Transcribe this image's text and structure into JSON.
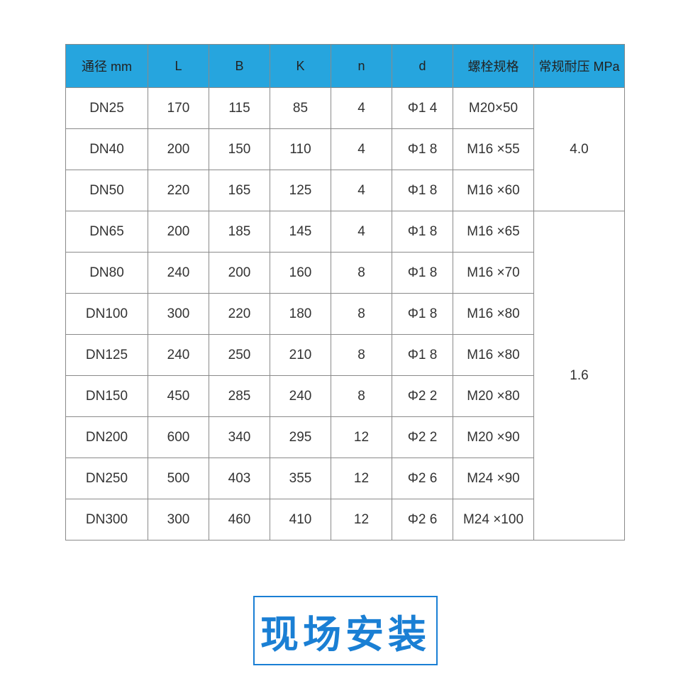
{
  "table": {
    "headers": [
      "通径 mm",
      "L",
      "B",
      "K",
      "n",
      "d",
      "螺栓规格",
      "常规耐压 MPa"
    ],
    "rows": [
      [
        "DN25",
        "170",
        "115",
        "85",
        "4",
        "Φ1 4",
        "M20×50"
      ],
      [
        "DN40",
        "200",
        "150",
        "110",
        "4",
        "Φ1 8",
        "M16 ×55"
      ],
      [
        "DN50",
        "220",
        "165",
        "125",
        "4",
        "Φ1 8",
        "M16 ×60"
      ],
      [
        "DN65",
        "200",
        "185",
        "145",
        "4",
        "Φ1 8",
        "M16 ×65"
      ],
      [
        "DN80",
        "240",
        "200",
        "160",
        "8",
        "Φ1 8",
        "M16 ×70"
      ],
      [
        "DN100",
        "300",
        "220",
        "180",
        "8",
        "Φ1 8",
        "M16 ×80"
      ],
      [
        "DN125",
        "240",
        "250",
        "210",
        "8",
        "Φ1 8",
        "M16 ×80"
      ],
      [
        "DN150",
        "450",
        "285",
        "240",
        "8",
        "Φ2 2",
        "M20 ×80"
      ],
      [
        "DN200",
        "600",
        "340",
        "295",
        "12",
        "Φ2 2",
        "M20 ×90"
      ],
      [
        "DN250",
        "500",
        "403",
        "355",
        "12",
        "Φ2 6",
        "M24 ×90"
      ],
      [
        "DN300",
        "300",
        "460",
        "410",
        "12",
        "Φ2 6",
        "M24 ×100"
      ]
    ],
    "pressure_groups": [
      {
        "value": "4.0",
        "rows": 3
      },
      {
        "value": "1.6",
        "rows": 8
      }
    ]
  },
  "banner": {
    "text": "现场安装",
    "color": "#1a7fd4"
  },
  "header_color": "#26a5de"
}
